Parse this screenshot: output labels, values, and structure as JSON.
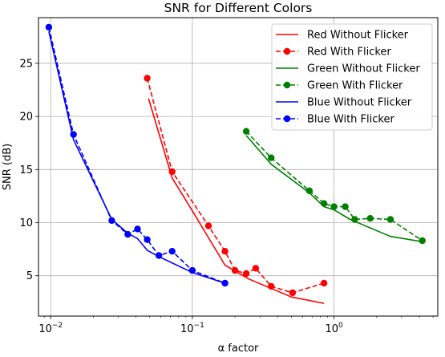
{
  "chart_data": {
    "type": "line",
    "title": "SNR for Different Colors",
    "xlabel": "α factor",
    "ylabel": "SNR (dB)",
    "xscale": "log",
    "xlim": [
      0.0082,
      5.4
    ],
    "ylim": [
      1.2,
      29.3
    ],
    "grid": true,
    "legend_position": "top-right",
    "x_ticks": [
      {
        "value": 0.01,
        "base": "10",
        "exp": "−2"
      },
      {
        "value": 0.1,
        "base": "10",
        "exp": "−1"
      },
      {
        "value": 1,
        "base": "10",
        "exp": "0"
      }
    ],
    "y_ticks": [
      {
        "value": 5,
        "label": "5"
      },
      {
        "value": 10,
        "label": "10"
      },
      {
        "value": 15,
        "label": "15"
      },
      {
        "value": 20,
        "label": "20"
      },
      {
        "value": 25,
        "label": "25"
      }
    ],
    "series": [
      {
        "name": "Red Without Flicker",
        "color": "#ff0000",
        "style": "solid",
        "marker": false,
        "x": [
          0.049,
          0.072,
          0.098,
          0.17,
          0.25,
          0.5,
          0.85
        ],
        "y": [
          21.7,
          14.2,
          11.3,
          6.0,
          4.7,
          3.0,
          2.4
        ]
      },
      {
        "name": "Red With Flicker",
        "color": "#ff0000",
        "style": "dashed",
        "marker": true,
        "x": [
          0.048,
          0.072,
          0.13,
          0.17,
          0.2,
          0.24,
          0.28,
          0.36,
          0.51,
          0.85
        ],
        "y": [
          23.6,
          14.8,
          9.7,
          7.3,
          5.5,
          5.2,
          5.7,
          4.0,
          3.4,
          4.3
        ]
      },
      {
        "name": "Green Without Flicker",
        "color": "#008000",
        "style": "solid",
        "marker": false,
        "x": [
          0.24,
          0.36,
          0.67,
          0.85,
          1.0,
          1.3,
          2.5,
          4.2
        ],
        "y": [
          18.2,
          15.5,
          12.8,
          11.5,
          11.2,
          10.3,
          8.7,
          8.2
        ]
      },
      {
        "name": "Green With Flicker",
        "color": "#008000",
        "style": "dashed",
        "marker": true,
        "x": [
          0.24,
          0.36,
          0.67,
          0.85,
          1.0,
          1.2,
          1.4,
          1.8,
          2.5,
          4.2
        ],
        "y": [
          18.6,
          16.1,
          13.0,
          11.8,
          11.5,
          11.5,
          10.3,
          10.4,
          10.3,
          8.3
        ]
      },
      {
        "name": "Blue Without Flicker",
        "color": "#0000ff",
        "style": "solid",
        "marker": false,
        "x": [
          0.0097,
          0.0145,
          0.027,
          0.035,
          0.041,
          0.048,
          0.058,
          0.1,
          0.17
        ],
        "y": [
          28.0,
          17.8,
          10.3,
          9.0,
          8.5,
          7.4,
          6.8,
          5.3,
          4.3
        ]
      },
      {
        "name": "Blue With Flicker",
        "color": "#0000ff",
        "style": "dashed",
        "marker": true,
        "x": [
          0.0097,
          0.0145,
          0.027,
          0.035,
          0.041,
          0.048,
          0.058,
          0.072,
          0.1,
          0.17
        ],
        "y": [
          28.4,
          18.3,
          10.2,
          8.9,
          9.4,
          8.4,
          6.9,
          7.3,
          5.5,
          4.3
        ]
      }
    ]
  }
}
